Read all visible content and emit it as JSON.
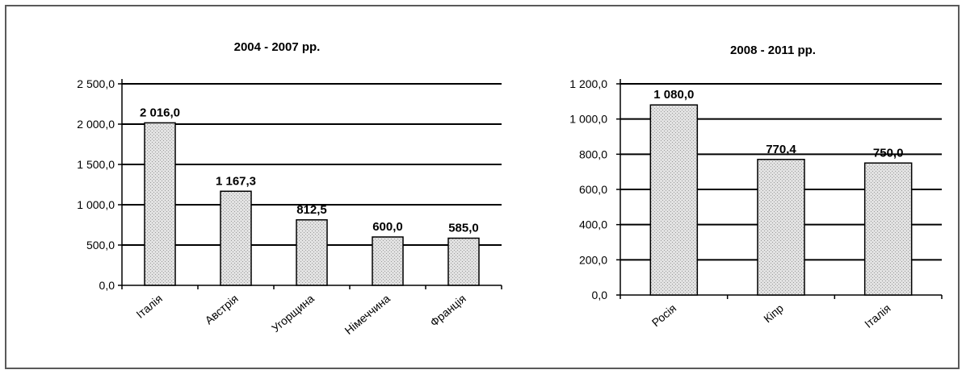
{
  "chart_data": [
    {
      "type": "bar",
      "title": "2004 - 2007 рр.",
      "categories": [
        "Італія",
        "Австрія",
        "Угорщина",
        "Німеччина",
        "Франція"
      ],
      "values": [
        2016.0,
        1167.3,
        812.5,
        600.0,
        585.0
      ],
      "value_labels": [
        "2 016,0",
        "1 167,3",
        "812,5",
        "600,0",
        "585,0"
      ],
      "yticks": [
        "0,0",
        "500,0",
        "1 000,0",
        "1 500,0",
        "2 000,0",
        "2 500,0"
      ],
      "ylim": [
        0,
        2500
      ],
      "grid": true,
      "bar_color": "#d4d4d4"
    },
    {
      "type": "bar",
      "title": "2008 - 2011 рр.",
      "categories": [
        "Росія",
        "Кіпр",
        "Італія"
      ],
      "values": [
        1080.0,
        770.4,
        750.0
      ],
      "value_labels": [
        "1 080,0",
        "770,4",
        "750,0"
      ],
      "yticks": [
        "0,0",
        "200,0",
        "400,0",
        "600,0",
        "800,0",
        "1 000,0",
        "1 200,0"
      ],
      "ylim": [
        0,
        1200
      ],
      "grid": true,
      "bar_color": "#d4d4d4"
    }
  ]
}
